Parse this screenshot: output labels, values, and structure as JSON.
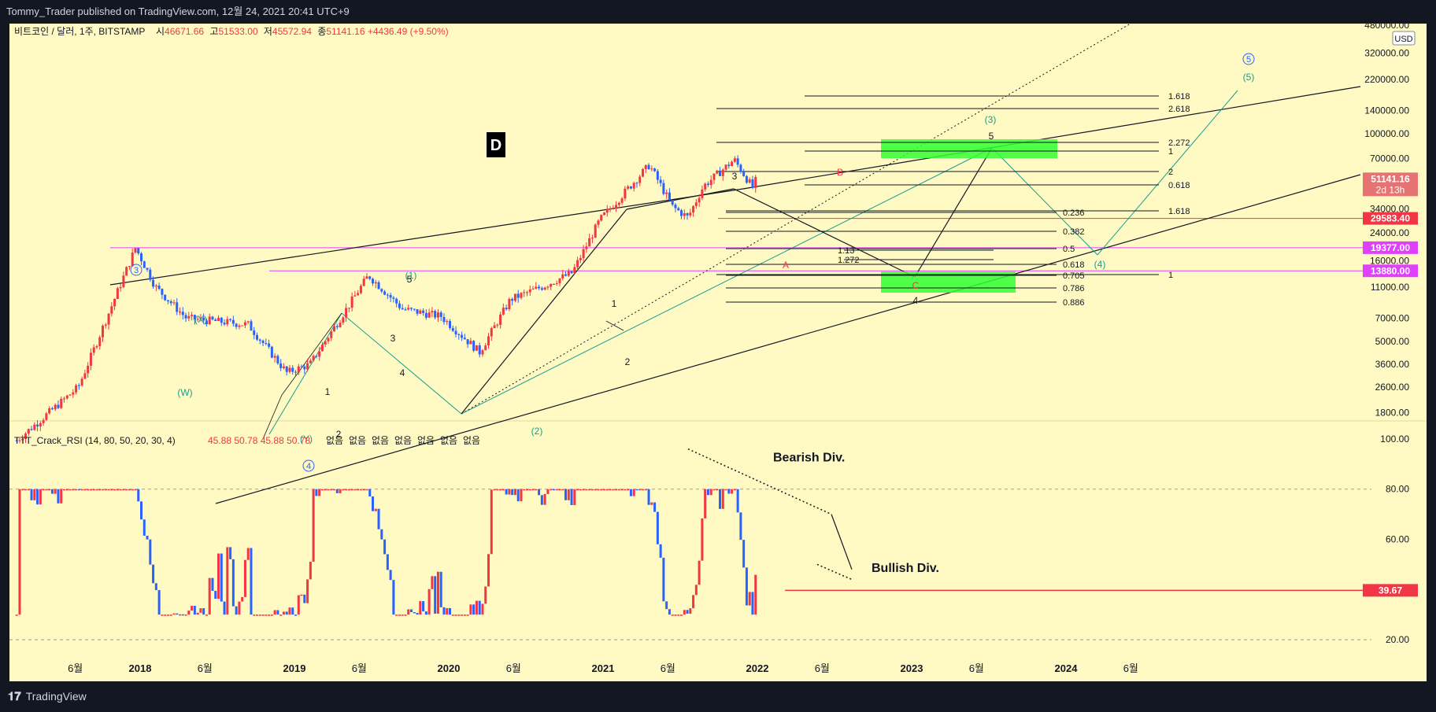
{
  "header": {
    "publish_line": "Tommy_Trader published on TradingView.com, 12월 24, 2021 20:41 UTC+9"
  },
  "footer": {
    "brand": "TradingView",
    "logo_icon": "tradingview-logo-icon"
  },
  "colors": {
    "background": "#fff9c4",
    "frame": "#131722",
    "up": "#f23645",
    "down": "#2962ff",
    "teal": "#16a091",
    "magenta": "#e040fb",
    "green_zone": "#33ff33"
  },
  "chart_data": [
    {
      "type": "candlestick",
      "title": "비트코인 / 달러, 1주, BITSTAMP",
      "ohlc_line": {
        "o_label": "시",
        "o": "46671.66",
        "h_label": "고",
        "h": "51533.00",
        "l_label": "저",
        "l": "45572.94",
        "c_label": "종",
        "c": "51141.16",
        "change": "+4436.49 (+9.50%)"
      },
      "currency_badge": "USD",
      "y_scale": "log",
      "ylim": [
        1200,
        480000
      ],
      "y_ticks": [
        "480000.00",
        "320000.00",
        "220000.00",
        "140000.00",
        "100000.00",
        "70000.00",
        "34000.00",
        "24000.00",
        "16000.00",
        "11000.00",
        "7000.00",
        "5000.00",
        "3600.00",
        "2600.00",
        "1800.00"
      ],
      "x_ticks": [
        "6월",
        "2018",
        "6월",
        "2019",
        "6월",
        "2020",
        "6월",
        "2021",
        "6월",
        "2022",
        "6월",
        "2023",
        "6월",
        "2024",
        "6월"
      ],
      "price_labels": [
        {
          "value": "51141.16",
          "sub": "2d 13h",
          "color": "#e57373"
        },
        {
          "value": "29583.40",
          "color": "#f23645"
        },
        {
          "value": "19377.00",
          "color": "#e040fb"
        },
        {
          "value": "13880.00",
          "color": "#e040fb"
        }
      ],
      "horizontal_levels": [
        29583.4,
        19377,
        13880
      ],
      "wave_labels": {
        "circled": [
          "3",
          "4",
          "5"
        ],
        "teal": [
          "(1)",
          "(2)",
          "(3)",
          "(4)",
          "(5)",
          "(X)",
          "(W)",
          "(Y)"
        ],
        "black": [
          "1",
          "2",
          "3",
          "4",
          "5",
          "1",
          "2",
          "3",
          "5",
          "4"
        ],
        "red": [
          "B",
          "A",
          "C"
        ]
      },
      "fib_labels": {
        "right_set": [
          "1.618",
          "2.618",
          "2.272",
          "1",
          "2",
          "0.618",
          "1.618",
          "1"
        ],
        "left_set": [
          "0.236",
          "0.382",
          "0.5",
          "0.618",
          "0.705",
          "0.786",
          "0.886",
          "1.13",
          "1.272"
        ]
      },
      "annotation_box": "D"
    },
    {
      "type": "line",
      "title": "TTT_Crack_RSI (14, 80, 50, 20, 30, 4)",
      "values_line": "45.88  50.78  45.88  50.78",
      "na_items": [
        "없음",
        "없음",
        "없음",
        "없음",
        "없음",
        "없음",
        "없음"
      ],
      "ylim": [
        10,
        105
      ],
      "y_ticks": [
        "100.00",
        "80.00",
        "60.00",
        "20.00"
      ],
      "current_label": "39.67",
      "annotations": [
        "Bearish Div.",
        "Bullish Div."
      ]
    }
  ]
}
